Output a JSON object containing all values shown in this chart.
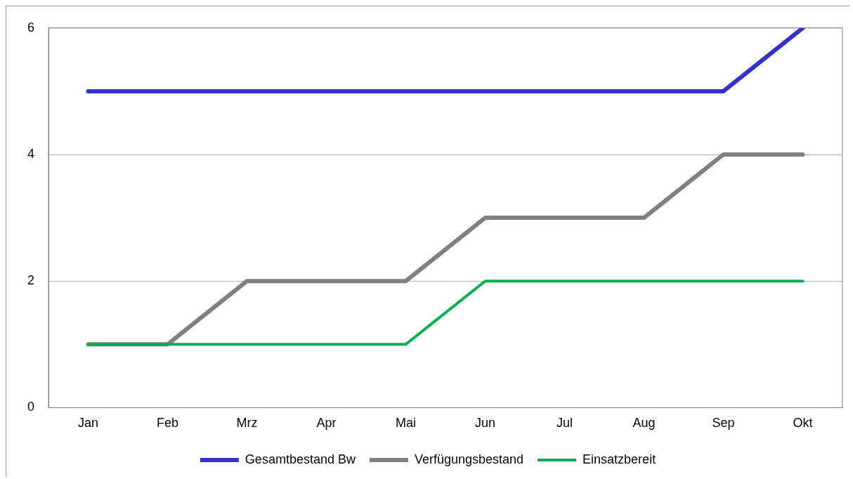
{
  "chart_data": {
    "type": "line",
    "categories": [
      "Jan",
      "Feb",
      "Mrz",
      "Apr",
      "Mai",
      "Jun",
      "Jul",
      "Aug",
      "Sep",
      "Okt"
    ],
    "series": [
      {
        "name": "Gesamtbestand Bw",
        "color": "#3333cc",
        "values": [
          5,
          5,
          5,
          5,
          5,
          5,
          5,
          5,
          5,
          6
        ]
      },
      {
        "name": "Verfügungsbestand",
        "color": "#808080",
        "values": [
          1,
          1,
          2,
          2,
          2,
          3,
          3,
          3,
          4,
          4
        ]
      },
      {
        "name": "Einsatzbereit",
        "color": "#00b050",
        "values": [
          1,
          1,
          1,
          1,
          1,
          2,
          2,
          2,
          2,
          2
        ]
      }
    ],
    "ylim": [
      0,
      6
    ],
    "yticks": [
      0,
      2,
      4,
      6
    ],
    "grid": "y",
    "legend": "bottom",
    "marker": "none",
    "line_style": "solid"
  }
}
